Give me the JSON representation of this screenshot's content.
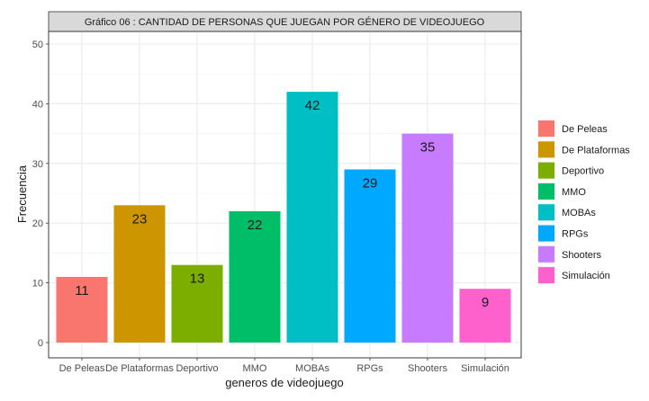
{
  "chart_data": {
    "type": "bar",
    "title": "Gráfico 06 : CANTIDAD DE PERSONAS QUE JUEGAN POR GÉNERO DE VIDEOJUEGO",
    "xlabel": "generos de videojuego",
    "ylabel": "Frecuencia",
    "categories": [
      "De Peleas",
      "De Plataformas",
      "Deportivo",
      "MMO",
      "MOBAs",
      "RPGs",
      "Shooters",
      "Simulación"
    ],
    "values": [
      11,
      23,
      13,
      22,
      42,
      29,
      35,
      9
    ],
    "colors": [
      "#F8766D",
      "#CD9600",
      "#7CAE00",
      "#00BE67",
      "#00BFC4",
      "#00A9FF",
      "#C77CFF",
      "#FF61CC"
    ],
    "ylim": [
      0,
      50
    ],
    "yticks": [
      0,
      10,
      20,
      30,
      40,
      50
    ],
    "grid": true,
    "legend": {
      "position": "right",
      "entries": [
        "De Peleas",
        "De Plataformas",
        "Deportivo",
        "MMO",
        "MOBAs",
        "RPGs",
        "Shooters",
        "Simulación"
      ]
    }
  }
}
